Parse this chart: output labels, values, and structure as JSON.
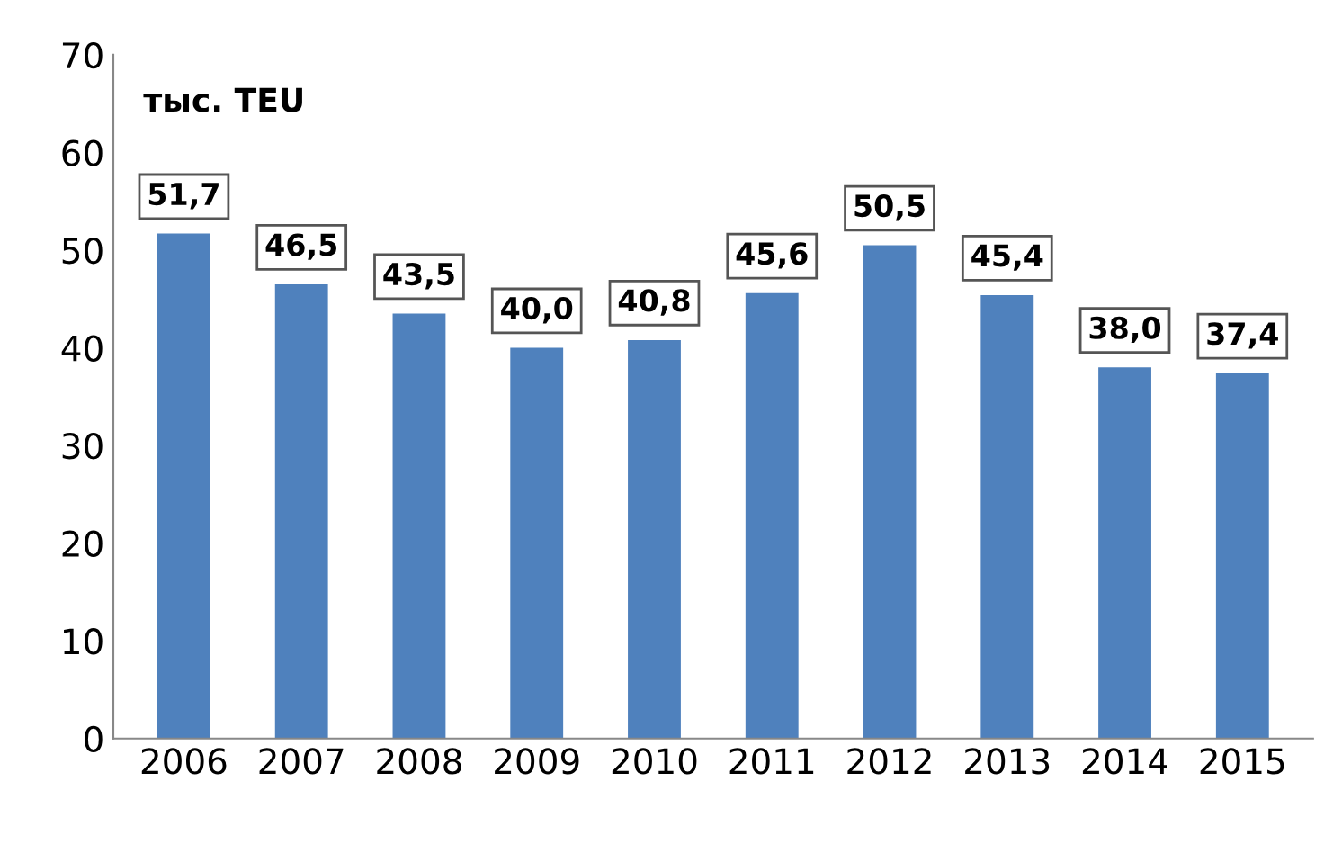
{
  "chart_data": {
    "type": "bar",
    "ylabel": "тыс. TEU",
    "categories": [
      "2006",
      "2007",
      "2008",
      "2009",
      "2010",
      "2011",
      "2012",
      "2013",
      "2014",
      "2015"
    ],
    "values": [
      51.7,
      46.5,
      43.5,
      40.0,
      40.8,
      45.6,
      50.5,
      45.4,
      38.0,
      37.4
    ],
    "value_labels": [
      "51,7",
      "46,5",
      "43,5",
      "40,0",
      "40,8",
      "45,6",
      "50,5",
      "45,4",
      "38,0",
      "37,4"
    ],
    "color": "#4f81bd",
    "ylim": [
      0,
      70
    ],
    "yticks": [
      0,
      10,
      20,
      30,
      40,
      50,
      60,
      70
    ],
    "grid": false,
    "legend": false
  }
}
